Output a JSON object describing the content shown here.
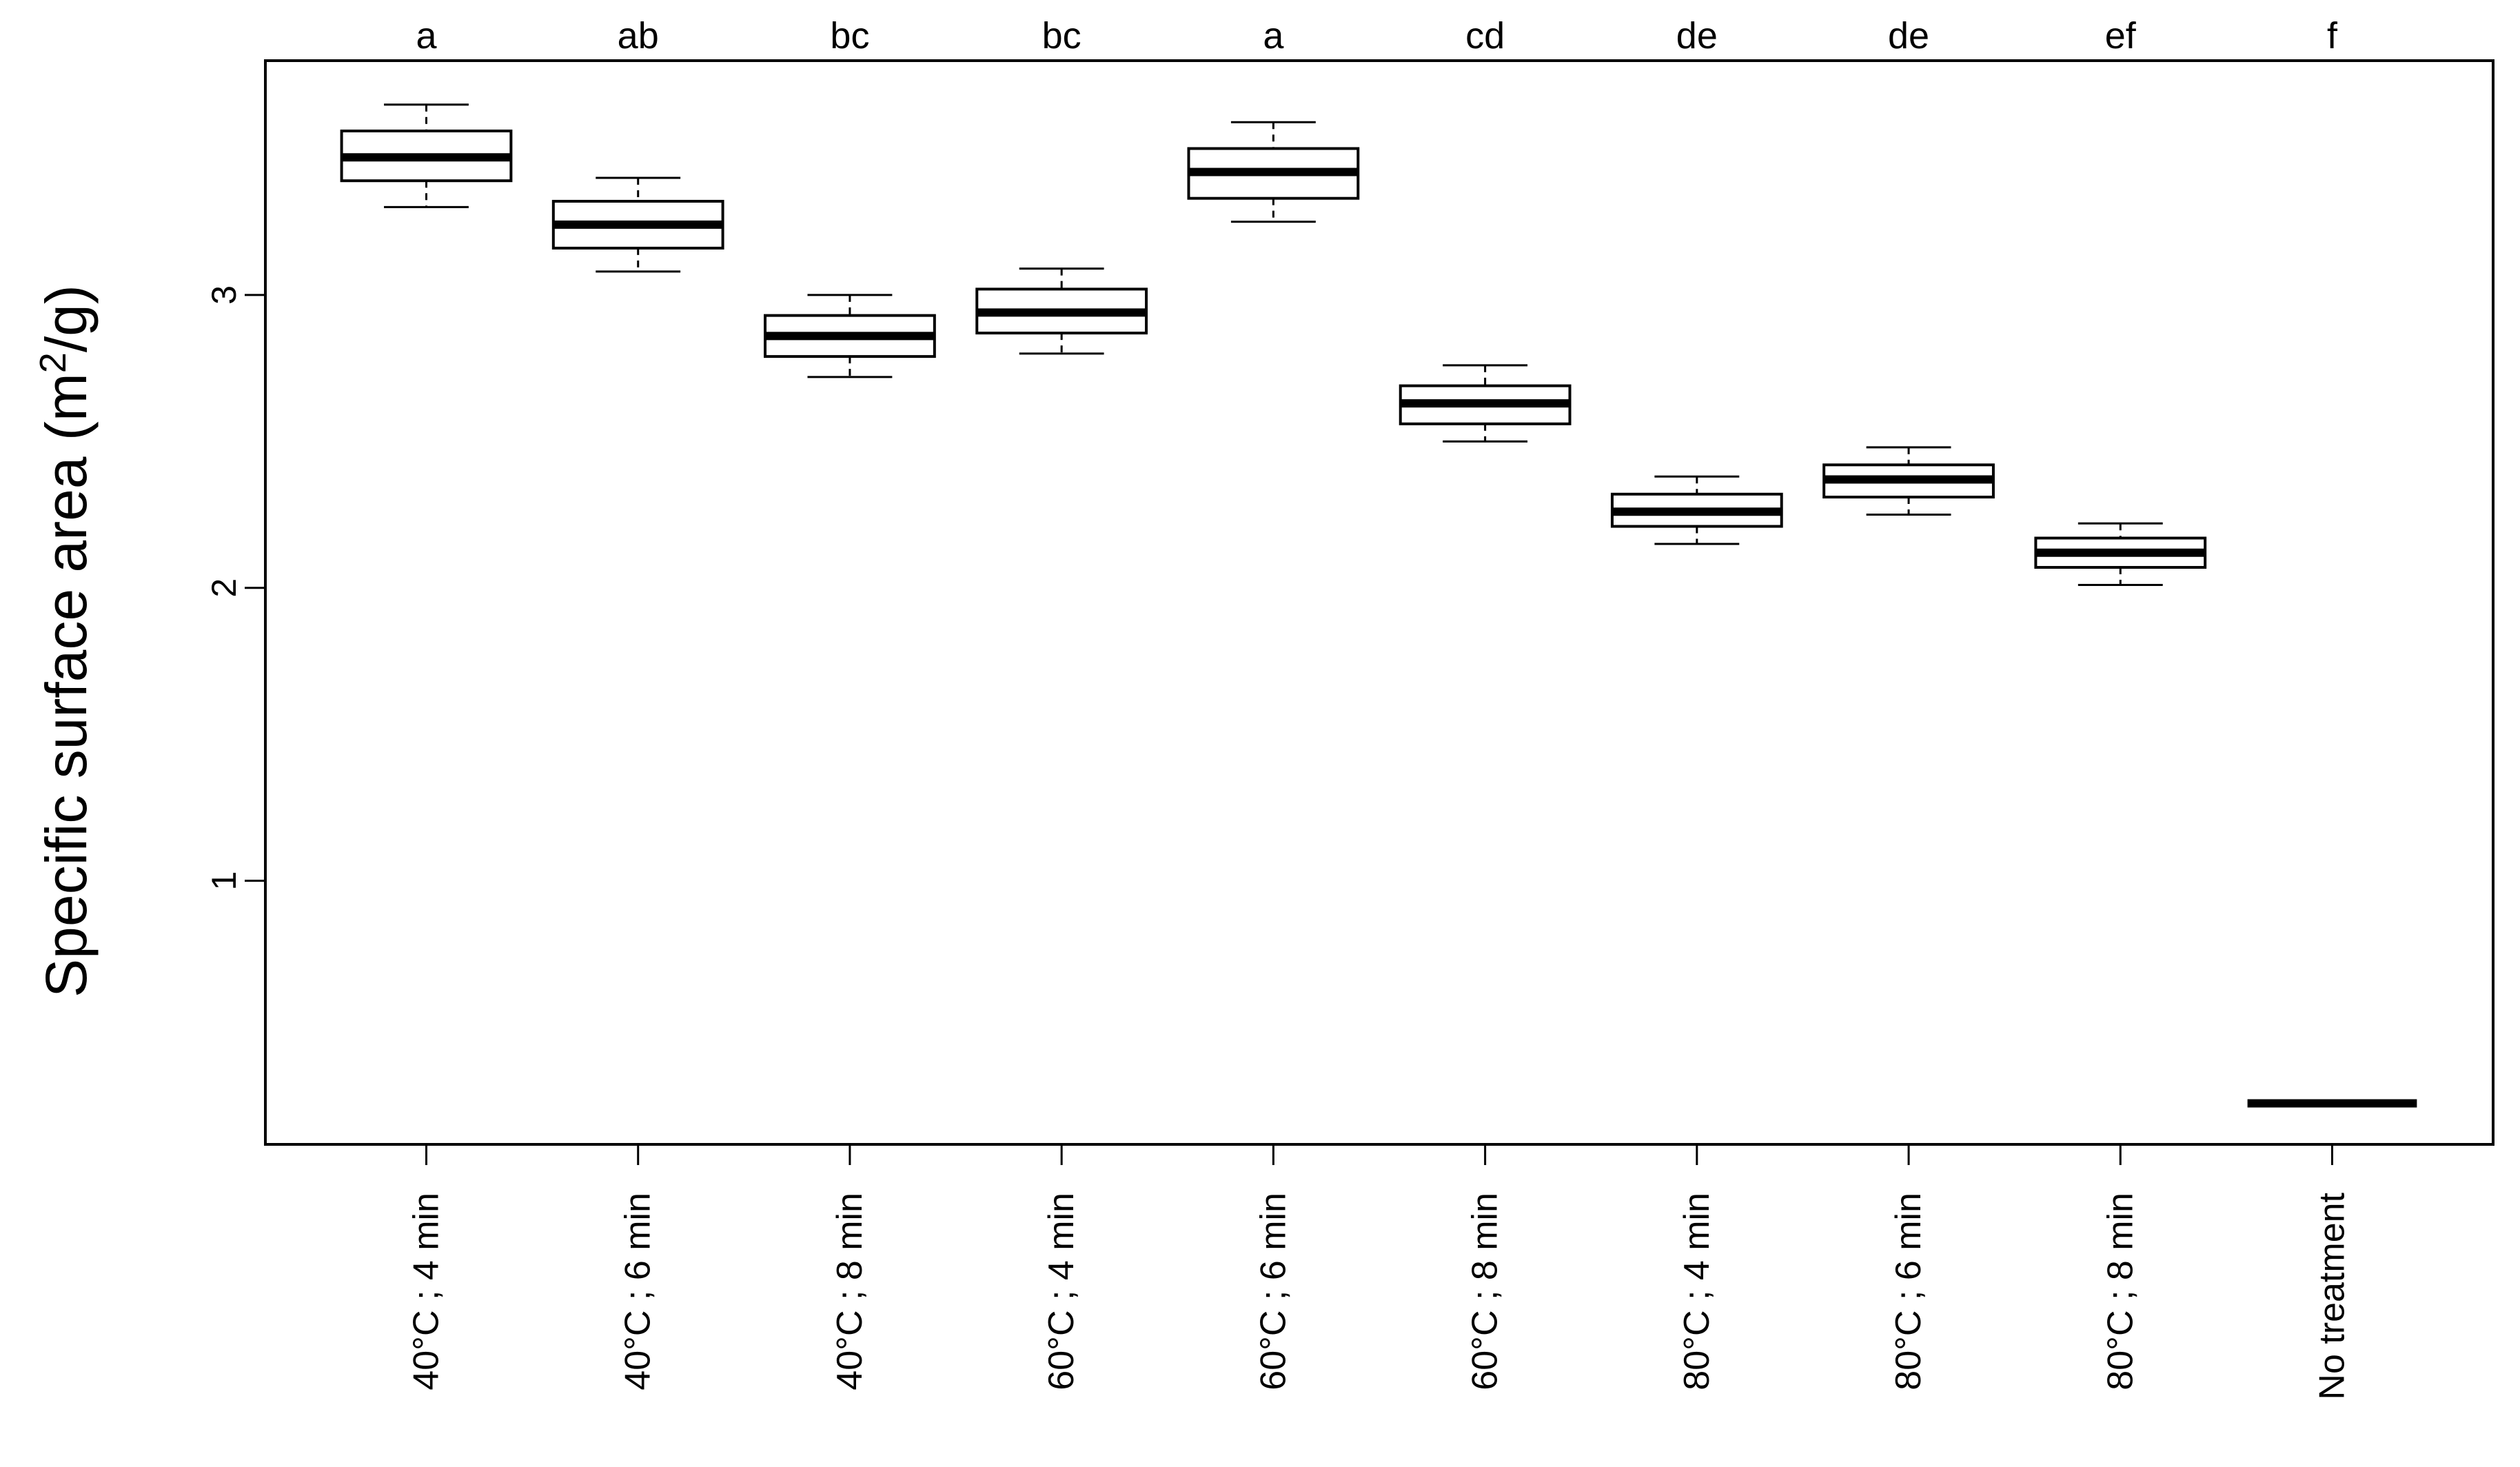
{
  "chart_data": {
    "type": "boxplot",
    "ylabel": {
      "prefix": "Specific surface area (m",
      "superscript": "2",
      "suffix": "/g)"
    },
    "ylim": [
      0.1,
      3.8
    ],
    "yticks": [
      1,
      2,
      3
    ],
    "grid": false,
    "categories": [
      "40°C ; 4 min",
      "40°C ; 6 min",
      "40°C ; 8 min",
      "60°C ; 4 min",
      "60°C ; 6 min",
      "60°C ; 8 min",
      "80°C ; 4 min",
      "80°C ; 6 min",
      "80°C ; 8 min",
      "No treatment"
    ],
    "significance_letters": [
      "a",
      "ab",
      "bc",
      "bc",
      "a",
      "cd",
      "de",
      "de",
      "ef",
      "f"
    ],
    "boxes": [
      {
        "whisker_low": 3.3,
        "q1": 3.39,
        "median": 3.47,
        "q3": 3.56,
        "whisker_high": 3.65
      },
      {
        "whisker_low": 3.08,
        "q1": 3.16,
        "median": 3.24,
        "q3": 3.32,
        "whisker_high": 3.4
      },
      {
        "whisker_low": 2.72,
        "q1": 2.79,
        "median": 2.86,
        "q3": 2.93,
        "whisker_high": 3.0
      },
      {
        "whisker_low": 2.8,
        "q1": 2.87,
        "median": 2.94,
        "q3": 3.02,
        "whisker_high": 3.09
      },
      {
        "whisker_low": 3.25,
        "q1": 3.33,
        "median": 3.42,
        "q3": 3.5,
        "whisker_high": 3.59
      },
      {
        "whisker_low": 2.5,
        "q1": 2.56,
        "median": 2.63,
        "q3": 2.69,
        "whisker_high": 2.76
      },
      {
        "whisker_low": 2.15,
        "q1": 2.21,
        "median": 2.26,
        "q3": 2.32,
        "whisker_high": 2.38
      },
      {
        "whisker_low": 2.25,
        "q1": 2.31,
        "median": 2.37,
        "q3": 2.42,
        "whisker_high": 2.48
      },
      {
        "whisker_low": 2.01,
        "q1": 2.07,
        "median": 2.12,
        "q3": 2.17,
        "whisker_high": 2.22
      },
      {
        "whisker_low": 0.24,
        "q1": 0.24,
        "median": 0.24,
        "q3": 0.24,
        "whisker_high": 0.24
      }
    ]
  }
}
